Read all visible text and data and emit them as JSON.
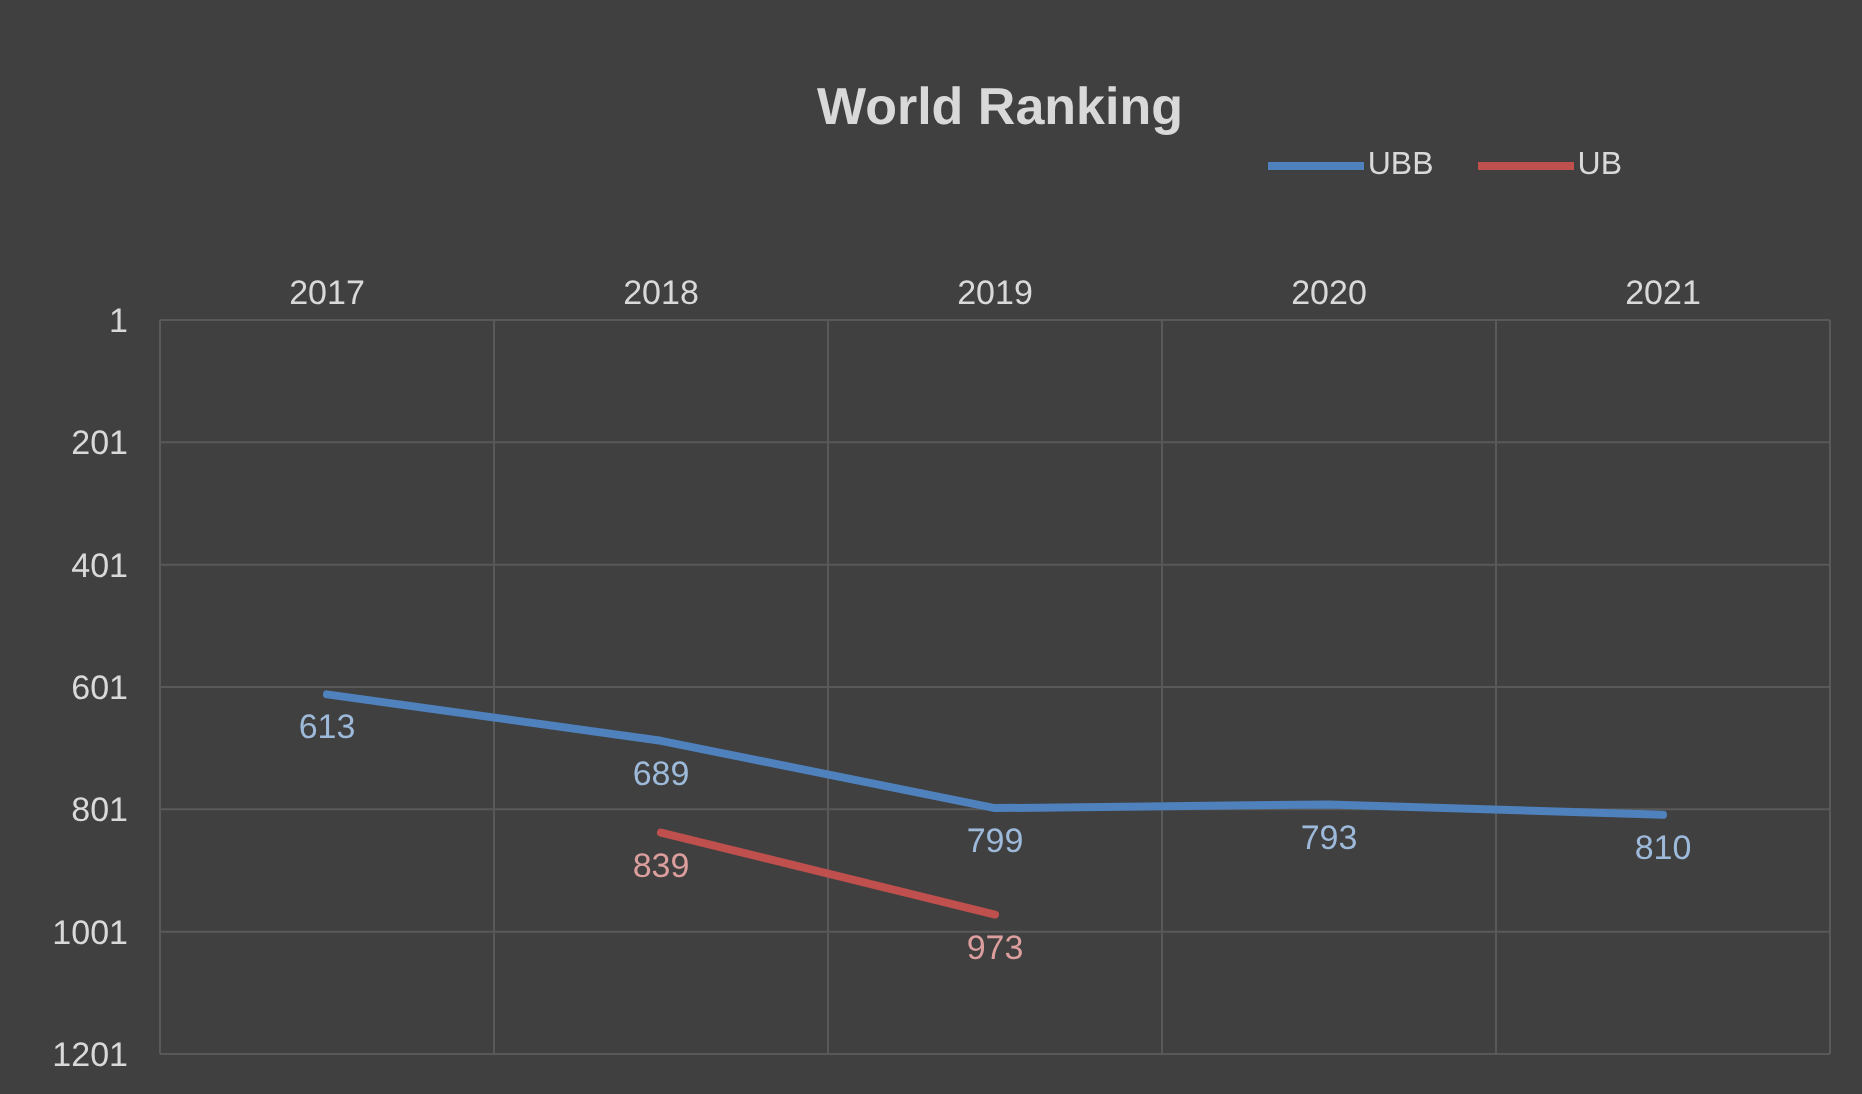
{
  "chart_data": {
    "type": "line",
    "title": "World Ranking",
    "categories": [
      "2017",
      "2018",
      "2019",
      "2020",
      "2021"
    ],
    "series": [
      {
        "name": "UBB",
        "color": "#4f81bd",
        "values": [
          613,
          689,
          799,
          793,
          810
        ]
      },
      {
        "name": "UB",
        "color": "#c0504d",
        "values": [
          null,
          839,
          973,
          null,
          null
        ]
      }
    ],
    "ylim": [
      1201,
      1
    ],
    "yticks": [
      1,
      201,
      401,
      601,
      801,
      1001,
      1201
    ],
    "grid": true,
    "legend": "top right",
    "data_labels": true,
    "marker": "none",
    "line_style": "solid"
  }
}
